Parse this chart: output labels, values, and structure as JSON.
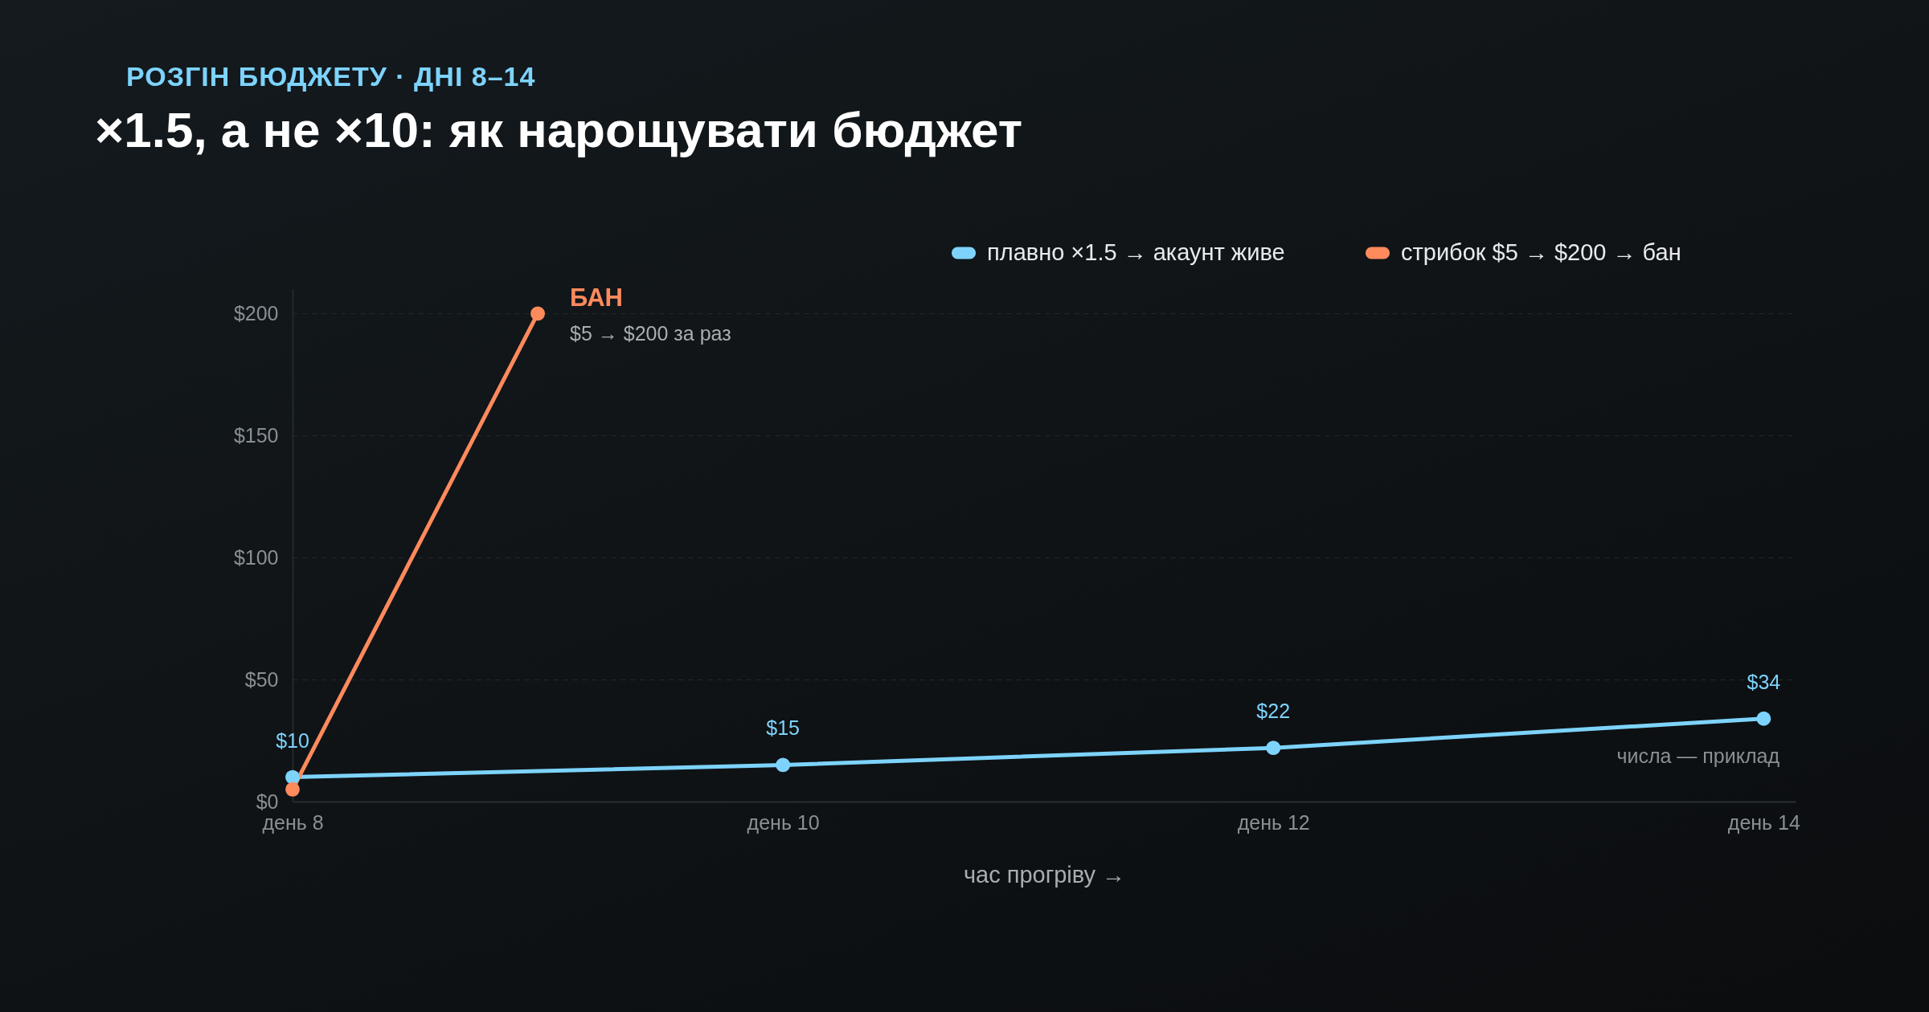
{
  "chart_data": {
    "type": "line",
    "subtitle": "РОЗГІН БЮДЖЕТУ · ДНІ 8–14",
    "title": "×1.5, а не ×10: як нарощувати бюджет",
    "xlabel": "час прогріву →",
    "categories": [
      "день 8",
      null,
      "день 10",
      null,
      "день 12",
      null,
      "день 14"
    ],
    "ylim": [
      0,
      210
    ],
    "yticks": [
      {
        "value": 0,
        "label": "$0"
      },
      {
        "value": 50,
        "label": "$50"
      },
      {
        "value": 100,
        "label": "$100"
      },
      {
        "value": 150,
        "label": "$150"
      },
      {
        "value": 200,
        "label": "$200"
      }
    ],
    "series": [
      {
        "name": "плавно ×1.5 → акаунт живе",
        "color": "#7dd3fc",
        "x": [
          "день 8",
          "день 10",
          "день 12",
          "день 14"
        ],
        "values": [
          10,
          15,
          22,
          34
        ],
        "value_labels": [
          "$10",
          "$15",
          "$22",
          "$34"
        ]
      },
      {
        "name": "стрибок $5 → $200 → бан",
        "color": "#ff8a5c",
        "values": [
          5,
          200,
          null,
          null,
          null,
          null,
          null
        ]
      }
    ],
    "annotations": [
      "БАН",
      "$5 → $200 за раз",
      "числа — приклад"
    ],
    "grid": "y",
    "legend": "top right",
    "marker": "circle",
    "line_style": "solid"
  }
}
